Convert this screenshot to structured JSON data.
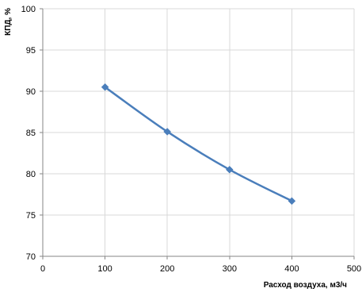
{
  "chart_data": {
    "type": "line",
    "title": "",
    "xlabel": "Расход воздуха, м3/ч",
    "ylabel": "КПД, %",
    "xlim": [
      0,
      500
    ],
    "ylim": [
      70,
      100
    ],
    "x_ticks": [
      0,
      100,
      200,
      300,
      400,
      500
    ],
    "y_ticks": [
      70,
      75,
      80,
      85,
      90,
      95,
      100
    ],
    "grid": true,
    "legend": "none",
    "series": [
      {
        "color": "#4a7ebb",
        "marker": "diamond",
        "smooth": true,
        "points": [
          {
            "x": 100,
            "y": 90.5
          },
          {
            "x": 200,
            "y": 85.1
          },
          {
            "x": 300,
            "y": 80.5
          },
          {
            "x": 400,
            "y": 76.7
          }
        ]
      }
    ]
  }
}
